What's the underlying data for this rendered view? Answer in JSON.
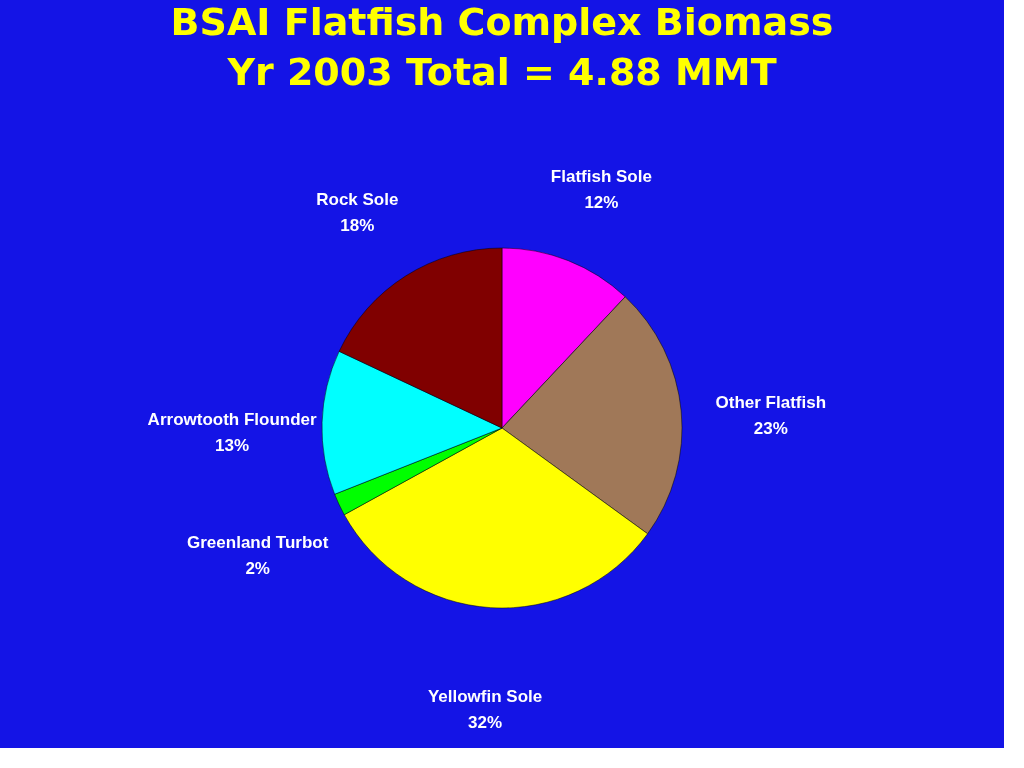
{
  "chart_data": {
    "type": "pie",
    "title": [
      "BSAI Flatfish Complex Biomass",
      "Yr 2003 Total = 4.88 MMT"
    ],
    "categories": [
      "Flatfish Sole",
      "Other Flatfish",
      "Yellowfin Sole",
      "Greenland Turbot",
      "Arrowtooth Flounder",
      "Rock Sole"
    ],
    "values": [
      12,
      23,
      32,
      2,
      13,
      18
    ],
    "colors": [
      "#ff00ff",
      "#a07858",
      "#ffff00",
      "#00ff00",
      "#00ffff",
      "#800000"
    ],
    "value_labels": [
      "12%",
      "23%",
      "32%",
      "2%",
      "13%",
      "18%"
    ],
    "legend": false
  }
}
